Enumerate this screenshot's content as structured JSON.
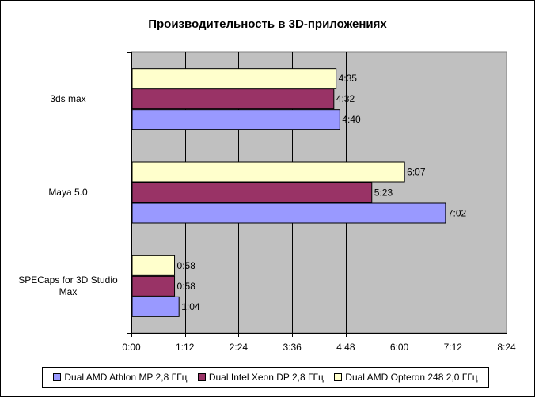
{
  "chart_data": {
    "type": "bar",
    "orientation": "horizontal",
    "title": "Производительность в 3D-приложениях",
    "categories": [
      "3ds max",
      "Maya 5.0",
      "SPECaps for 3D Studio Max"
    ],
    "series": [
      {
        "name": "Dual AMD Athlon MP 2,8 ГГц",
        "color": "#9999ff",
        "values": [
          280,
          422,
          64
        ],
        "labels": [
          "4:40",
          "7:02",
          "1:04"
        ]
      },
      {
        "name": "Dual Intel Xeon DP 2,8 ГГц",
        "color": "#993366",
        "values": [
          272,
          323,
          58
        ],
        "labels": [
          "4:32",
          "5:23",
          "0:58"
        ]
      },
      {
        "name": "Dual AMD Opteron 248 2,0 ГГц",
        "color": "#ffffcc",
        "values": [
          275,
          367,
          58
        ],
        "labels": [
          "4:35",
          "6:07",
          "0:58"
        ]
      }
    ],
    "x_unit": "seconds (m:ss)",
    "xlim": [
      0,
      504
    ],
    "x_ticks": [
      0,
      72,
      144,
      216,
      288,
      360,
      432,
      504
    ],
    "x_tick_labels": [
      "0:00",
      "1:12",
      "2:24",
      "3:36",
      "4:48",
      "6:00",
      "7:12",
      "8:24"
    ],
    "grid": "vertical",
    "plot_background": "#c0c0c0",
    "legend_position": "bottom"
  }
}
